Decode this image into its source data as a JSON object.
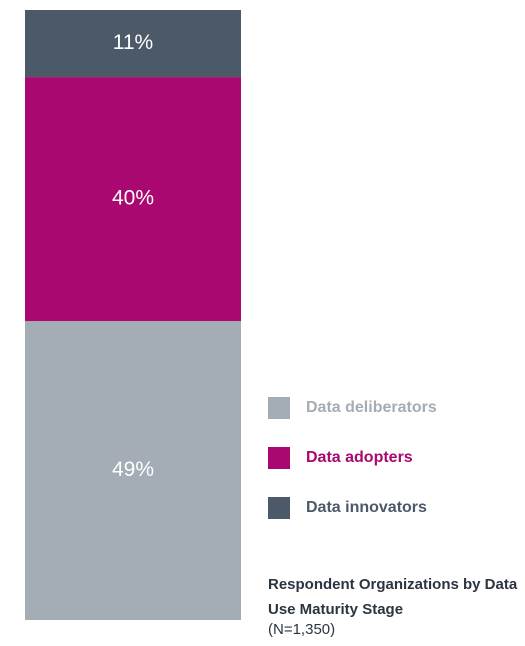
{
  "chart_data": {
    "type": "stacked_bar",
    "title": "Respondent Organizations by Data Use Maturity Stage",
    "subtitle": "(N=1,350)",
    "categories": [
      null
    ],
    "ylim": [
      0,
      100
    ],
    "series": [
      {
        "name": "Data deliberators",
        "color": "#a4adb5",
        "values": [
          49
        ],
        "value_labels": [
          "49%"
        ]
      },
      {
        "name": "Data adopters",
        "color": "#a8086f",
        "values": [
          40
        ],
        "value_labels": [
          "40%"
        ]
      },
      {
        "name": "Data innovators",
        "color": "#4b5968",
        "values": [
          11
        ],
        "value_labels": [
          "11%"
        ]
      }
    ]
  }
}
